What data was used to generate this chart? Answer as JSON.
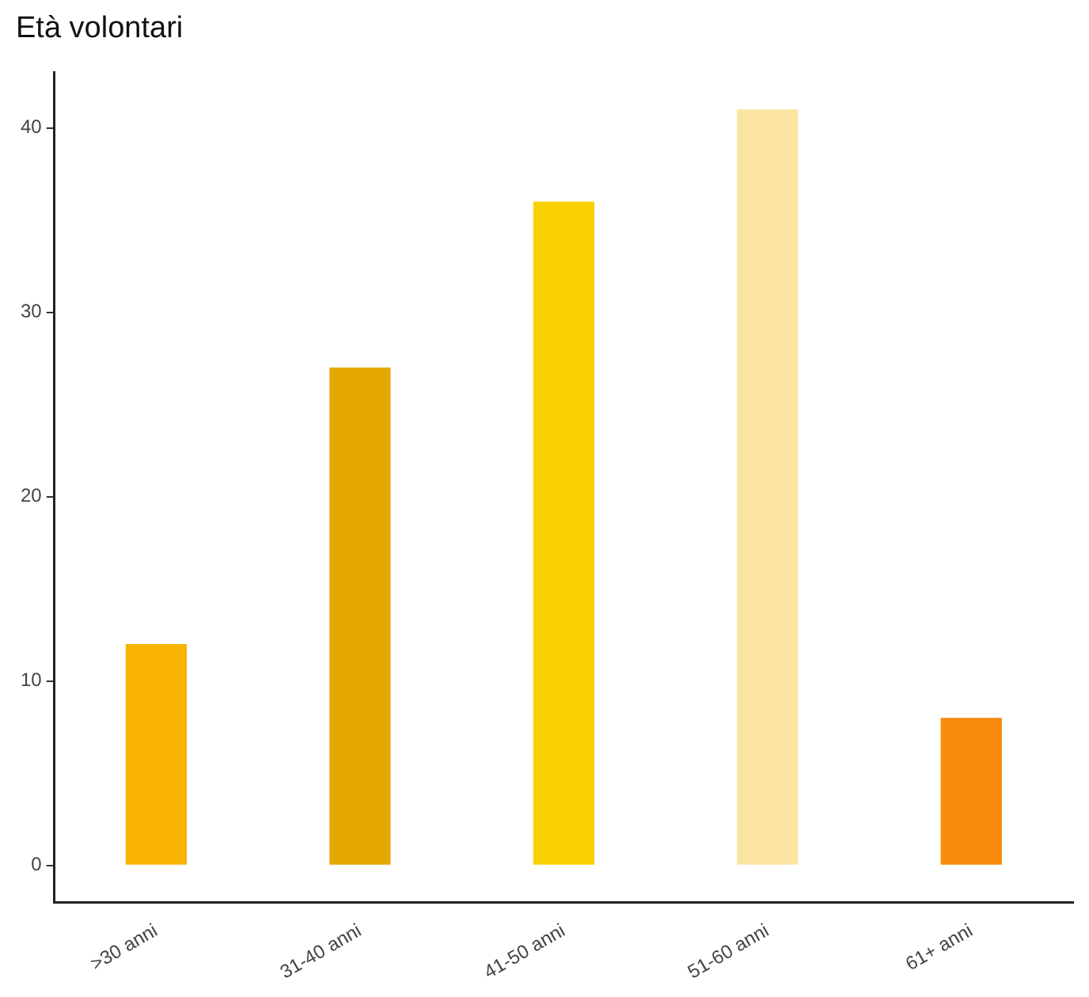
{
  "chart_data": {
    "type": "bar",
    "title": "Età volontari",
    "categories": [
      ">30 anni",
      "31-40 anni",
      "41-50 anni",
      "51-60 anni",
      "61+ anni"
    ],
    "values": [
      12,
      27,
      36,
      41,
      8
    ],
    "colors": [
      "#f8b400",
      "#e4a800",
      "#f8d000",
      "#fbe3a2",
      "#fa8a0a"
    ],
    "ylim": [
      -2,
      43
    ],
    "yticks": [
      0,
      10,
      20,
      30,
      40
    ],
    "grid": false,
    "legend": false
  }
}
